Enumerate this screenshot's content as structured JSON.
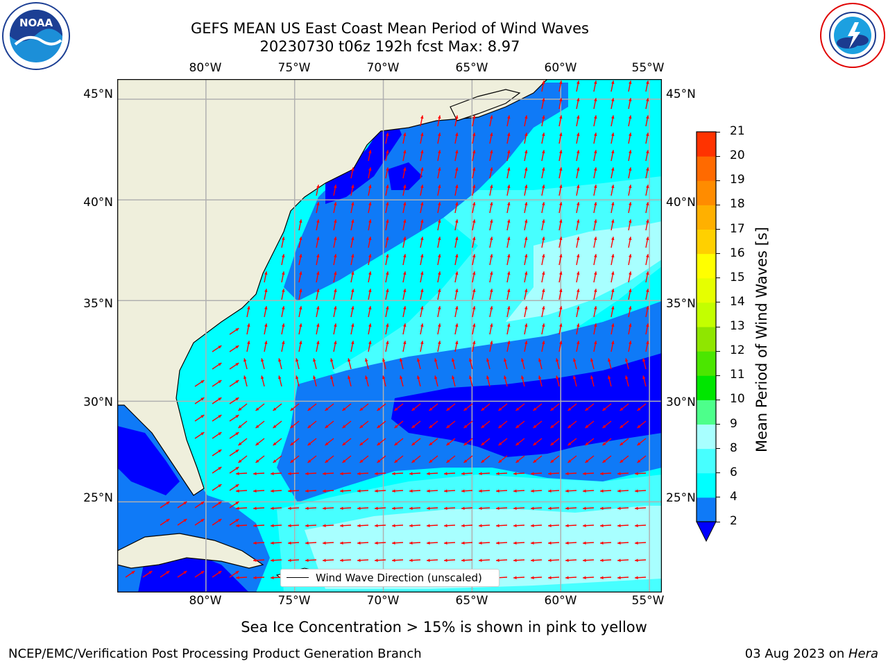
{
  "title": {
    "line1": "GEFS MEAN US East Coast Mean Period of Wind Waves",
    "line2": "20230730 t06z 192h fcst   Max: 8.97"
  },
  "map": {
    "lon_labels": [
      "80°W",
      "75°W",
      "70°W",
      "65°W",
      "60°W",
      "55°W"
    ],
    "lat_labels": [
      "45°N",
      "40°N",
      "35°N",
      "30°N",
      "25°N"
    ],
    "lon_values": [
      -80,
      -75,
      -70,
      -65,
      -60,
      -55
    ],
    "lat_values": [
      45,
      40,
      35,
      30,
      25
    ],
    "extent": {
      "lon_min": -85,
      "lon_max": -54.3,
      "lat_min": 20.5,
      "lat_max": 46
    },
    "colors": {
      "land": "#efefdc",
      "grid": "#b0b0b0",
      "arrow": "#ff0000"
    },
    "legend_label": "Wind Wave Direction (unscaled)"
  },
  "colorbar": {
    "label": "Mean Period of Wind Waves [s]",
    "ticks": [
      "2",
      "4",
      "6",
      "8",
      "9",
      "10",
      "11",
      "12",
      "13",
      "14",
      "15",
      "16",
      "17",
      "18",
      "19",
      "20",
      "21"
    ],
    "colors": [
      "#0f7af7",
      "#00ffff",
      "#47ffff",
      "#a8ffff",
      "#4dff8b",
      "#00e600",
      "#4be600",
      "#8fe600",
      "#c3ff00",
      "#e6ff00",
      "#ffff00",
      "#ffd000",
      "#ffb000",
      "#ff8c00",
      "#ff6a00",
      "#ff3300",
      "#ff0000"
    ],
    "under_color": "#0000ff"
  },
  "note": "Sea Ice Concentration > 15% is shown in pink to yellow",
  "footer": {
    "left": "NCEP/EMC/Verification Post Processing Product Generation Branch",
    "right_date": "03 Aug 2023 on ",
    "right_machine": "Hera"
  },
  "logos": {
    "noaa": "NOAA",
    "nws": "NATIONAL WEATHER SERVICE"
  }
}
